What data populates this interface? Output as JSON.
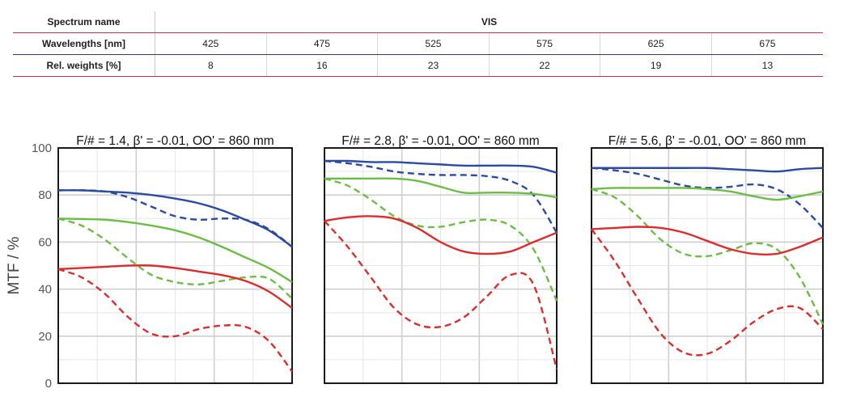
{
  "table": {
    "spectrum_label": "Spectrum name",
    "spectrum_name": "VIS",
    "wavelengths_label": "Wavelengths [nm]",
    "wavelengths": [
      "425",
      "475",
      "525",
      "575",
      "625",
      "675"
    ],
    "weights_label": "Rel. weights [%]",
    "weights": [
      "8",
      "16",
      "23",
      "22",
      "19",
      "13"
    ]
  },
  "chart_data": [
    {
      "type": "line",
      "title": "F/# = 1.4, β' = -0.01, OO' = 860 mm",
      "ylabel": "MTF / %",
      "ylim": [
        0,
        100
      ],
      "yticks": [
        "0",
        "20",
        "40",
        "60",
        "80",
        "100"
      ],
      "xlim": [
        0,
        1
      ],
      "grid": true,
      "series": [
        {
          "color": "#2b4ba0",
          "dash": false,
          "x": [
            0,
            0.1,
            0.2,
            0.3,
            0.4,
            0.5,
            0.6,
            0.7,
            0.8,
            0.9,
            1.0
          ],
          "y": [
            82,
            82,
            81.5,
            81,
            80,
            78.5,
            76.5,
            73.5,
            69.5,
            65,
            58
          ]
        },
        {
          "color": "#2b4ba0",
          "dash": true,
          "x": [
            0,
            0.1,
            0.2,
            0.3,
            0.4,
            0.5,
            0.6,
            0.7,
            0.8,
            0.9,
            1.0
          ],
          "y": [
            82,
            82,
            81.5,
            79,
            75,
            71,
            69.5,
            70,
            69.5,
            65.5,
            58
          ]
        },
        {
          "color": "#6cbd45",
          "dash": false,
          "x": [
            0,
            0.1,
            0.2,
            0.3,
            0.4,
            0.5,
            0.6,
            0.7,
            0.8,
            0.9,
            1.0
          ],
          "y": [
            70,
            69.8,
            69.5,
            68.5,
            67,
            65,
            62,
            58,
            53.5,
            49,
            43
          ]
        },
        {
          "color": "#6cbd45",
          "dash": true,
          "x": [
            0,
            0.1,
            0.2,
            0.3,
            0.4,
            0.5,
            0.6,
            0.7,
            0.8,
            0.9,
            1.0
          ],
          "y": [
            70,
            67,
            61,
            53,
            46,
            43,
            42,
            43.5,
            45,
            44.5,
            36
          ]
        },
        {
          "color": "#dc2d2d",
          "dash": false,
          "x": [
            0,
            0.1,
            0.2,
            0.3,
            0.4,
            0.5,
            0.6,
            0.7,
            0.8,
            0.9,
            1.0
          ],
          "y": [
            48.5,
            49,
            49.5,
            50,
            50,
            49,
            47.5,
            46,
            43.5,
            39,
            32
          ]
        },
        {
          "color": "#dc2d2d",
          "dash": true,
          "x": [
            0,
            0.1,
            0.2,
            0.3,
            0.4,
            0.5,
            0.6,
            0.7,
            0.8,
            0.9,
            1.0
          ],
          "y": [
            48.5,
            45,
            38,
            28,
            21,
            20,
            23,
            24.5,
            24,
            18,
            5
          ]
        }
      ]
    },
    {
      "type": "line",
      "title": "F/# = 2.8, β' = -0.01, OO' = 860 mm",
      "ylim": [
        0,
        100
      ],
      "xlim": [
        0,
        1
      ],
      "grid": true,
      "series": [
        {
          "color": "#2b4ba0",
          "dash": false,
          "x": [
            0,
            0.1,
            0.2,
            0.3,
            0.4,
            0.5,
            0.6,
            0.7,
            0.8,
            0.9,
            1.0
          ],
          "y": [
            94.5,
            94.5,
            94,
            94,
            93.5,
            93,
            92.5,
            92.5,
            92.5,
            92,
            89.5
          ]
        },
        {
          "color": "#2b4ba0",
          "dash": true,
          "x": [
            0,
            0.1,
            0.2,
            0.3,
            0.4,
            0.5,
            0.6,
            0.7,
            0.8,
            0.9,
            1.0
          ],
          "y": [
            94.5,
            93.5,
            92,
            90,
            89,
            88.5,
            88.5,
            88,
            86,
            80,
            64
          ]
        },
        {
          "color": "#6cbd45",
          "dash": false,
          "x": [
            0,
            0.1,
            0.2,
            0.3,
            0.4,
            0.5,
            0.6,
            0.7,
            0.8,
            0.9,
            1.0
          ],
          "y": [
            87,
            87,
            87,
            87,
            86,
            83.5,
            81,
            81,
            81,
            80.5,
            79
          ]
        },
        {
          "color": "#6cbd45",
          "dash": true,
          "x": [
            0,
            0.1,
            0.2,
            0.3,
            0.4,
            0.5,
            0.6,
            0.7,
            0.8,
            0.9,
            1.0
          ],
          "y": [
            87,
            84,
            78,
            71,
            67,
            66.5,
            68.5,
            69.5,
            67,
            57,
            35
          ]
        },
        {
          "color": "#dc2d2d",
          "dash": false,
          "x": [
            0,
            0.1,
            0.2,
            0.3,
            0.4,
            0.5,
            0.6,
            0.7,
            0.8,
            0.9,
            1.0
          ],
          "y": [
            69,
            70.5,
            71,
            70,
            66,
            60,
            56,
            55,
            56,
            60,
            64
          ]
        },
        {
          "color": "#dc2d2d",
          "dash": true,
          "x": [
            0,
            0.1,
            0.2,
            0.3,
            0.4,
            0.5,
            0.6,
            0.7,
            0.8,
            0.9,
            1.0
          ],
          "y": [
            69,
            58,
            45,
            32,
            25,
            24,
            28,
            37,
            46,
            42,
            6
          ]
        }
      ]
    },
    {
      "type": "line",
      "title": "F/# = 5.6, β' = -0.01, OO' = 860 mm",
      "ylim": [
        0,
        100
      ],
      "xlim": [
        0,
        1
      ],
      "grid": true,
      "series": [
        {
          "color": "#2b4ba0",
          "dash": false,
          "x": [
            0,
            0.1,
            0.2,
            0.3,
            0.4,
            0.5,
            0.6,
            0.7,
            0.8,
            0.9,
            1.0
          ],
          "y": [
            91.5,
            91.5,
            91.5,
            91.5,
            91.5,
            91.5,
            91,
            90.5,
            90,
            91,
            91.5
          ]
        },
        {
          "color": "#2b4ba0",
          "dash": true,
          "x": [
            0,
            0.1,
            0.2,
            0.3,
            0.4,
            0.5,
            0.6,
            0.7,
            0.8,
            0.9,
            1.0
          ],
          "y": [
            91.5,
            90.5,
            89,
            86.5,
            84,
            83,
            83.5,
            84.5,
            82.5,
            76,
            66
          ]
        },
        {
          "color": "#6cbd45",
          "dash": false,
          "x": [
            0,
            0.1,
            0.2,
            0.3,
            0.4,
            0.5,
            0.6,
            0.7,
            0.8,
            0.9,
            1.0
          ],
          "y": [
            82.5,
            83,
            83,
            83,
            83,
            82.5,
            81.5,
            79.5,
            78,
            79.5,
            81.5
          ]
        },
        {
          "color": "#6cbd45",
          "dash": true,
          "x": [
            0,
            0.1,
            0.2,
            0.3,
            0.4,
            0.5,
            0.6,
            0.7,
            0.8,
            0.9,
            1.0
          ],
          "y": [
            82.5,
            79,
            71,
            61,
            55,
            54,
            56.5,
            59.5,
            57,
            45,
            25
          ]
        },
        {
          "color": "#dc2d2d",
          "dash": false,
          "x": [
            0,
            0.1,
            0.2,
            0.3,
            0.4,
            0.5,
            0.6,
            0.7,
            0.8,
            0.9,
            1.0
          ],
          "y": [
            65.5,
            66,
            66.5,
            66,
            64,
            60.5,
            57,
            55,
            55,
            58,
            62
          ]
        },
        {
          "color": "#dc2d2d",
          "dash": true,
          "x": [
            0,
            0.1,
            0.2,
            0.3,
            0.4,
            0.5,
            0.6,
            0.7,
            0.8,
            0.9,
            1.0
          ],
          "y": [
            65.5,
            52,
            36,
            21,
            13,
            12.5,
            18,
            26,
            31.5,
            32,
            23
          ]
        }
      ]
    }
  ]
}
